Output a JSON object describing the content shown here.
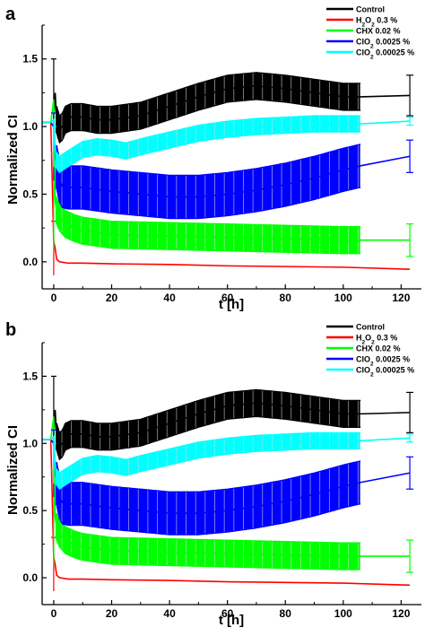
{
  "chart_data": [
    {
      "type": "line",
      "panel_letter": "a",
      "xlabel": "t [h]",
      "ylabel": "Normalized CI",
      "xlim": [
        -4,
        127
      ],
      "ylim": [
        -0.2,
        1.75
      ],
      "x_ticks": [
        "0",
        "20",
        "40",
        "60",
        "80",
        "100",
        "120"
      ],
      "x_tick_values": [
        0,
        20,
        40,
        60,
        80,
        100,
        120
      ],
      "y_ticks": [
        "0.0",
        "0.5",
        "1.0",
        "1.5"
      ],
      "y_tick_values": [
        0.0,
        0.5,
        1.0,
        1.5
      ],
      "legend_position": "top-right",
      "grid": false,
      "series": [
        {
          "name": "Control",
          "color": "#000000",
          "x": [
            -4,
            -1,
            0,
            0.5,
            1,
            2,
            3,
            4,
            6,
            10,
            15,
            20,
            30,
            40,
            50,
            60,
            70,
            80,
            90,
            100,
            106,
            123
          ],
          "y": [
            1.03,
            1.03,
            1.05,
            1.25,
            1.05,
            0.98,
            1.0,
            1.05,
            1.07,
            1.07,
            1.05,
            1.05,
            1.08,
            1.15,
            1.22,
            1.28,
            1.3,
            1.28,
            1.25,
            1.22,
            1.22,
            1.23
          ],
          "err": 0.1,
          "end_point_err": 0.15
        },
        {
          "name": "H2O2 0.3 %",
          "color": "#ff0000",
          "x": [
            -4,
            -1,
            0,
            0.5,
            1,
            2,
            5,
            10,
            20,
            40,
            60,
            80,
            100,
            123
          ],
          "y": [
            1.03,
            1.03,
            0.15,
            0.1,
            0.02,
            0.0,
            -0.01,
            -0.01,
            -0.015,
            -0.02,
            -0.03,
            -0.035,
            -0.04,
            -0.055
          ],
          "err": 0.005,
          "end_point_err": 0.0
        },
        {
          "name": "CHX 0.02 %",
          "color": "#00ff00",
          "x": [
            -4,
            -1,
            0,
            0.5,
            1,
            2,
            4,
            7,
            10,
            20,
            40,
            60,
            80,
            100,
            106,
            123
          ],
          "y": [
            1.03,
            1.03,
            1.2,
            0.45,
            0.38,
            0.33,
            0.28,
            0.25,
            0.23,
            0.2,
            0.19,
            0.18,
            0.17,
            0.16,
            0.16,
            0.16
          ],
          "err": 0.1,
          "end_point_err": 0.12
        },
        {
          "name": "ClO2 0.0025 %",
          "color": "#0000ff",
          "x": [
            -4,
            -1,
            0,
            0.5,
            1,
            2,
            3,
            5,
            10,
            20,
            30,
            40,
            50,
            60,
            70,
            80,
            90,
            100,
            106,
            123
          ],
          "y": [
            1.03,
            1.03,
            1.0,
            0.85,
            0.7,
            0.6,
            0.56,
            0.55,
            0.55,
            0.52,
            0.5,
            0.48,
            0.48,
            0.5,
            0.53,
            0.57,
            0.62,
            0.68,
            0.71,
            0.78
          ],
          "err": 0.16,
          "end_point_err": 0.12
        },
        {
          "name": "ClO2 0.00025 %",
          "color": "#00ffff",
          "x": [
            -4,
            -1,
            0,
            0.5,
            1,
            2,
            4,
            10,
            15,
            20,
            25,
            30,
            40,
            50,
            60,
            70,
            80,
            90,
            100,
            106,
            123
          ],
          "y": [
            1.03,
            1.03,
            1.05,
            0.85,
            0.75,
            0.72,
            0.75,
            0.83,
            0.85,
            0.84,
            0.82,
            0.85,
            0.9,
            0.95,
            0.98,
            1.0,
            1.01,
            1.02,
            1.02,
            1.02,
            1.04
          ],
          "err": 0.06,
          "end_point_err": 0.03
        }
      ],
      "legend": [
        {
          "label": "Control",
          "color": "#000000"
        },
        {
          "main": "H",
          "sub1": "2",
          "mid": "O",
          "sub2": "2",
          "rest": " 0.3  %",
          "color": "#ff0000"
        },
        {
          "label": "CHX 0.02 %",
          "color": "#00ff00"
        },
        {
          "main": "ClO",
          "sub1": "2",
          "rest": " 0.0025 %",
          "color": "#0000ff"
        },
        {
          "main": "ClO",
          "sub1": "2",
          "rest": " 0.00025 %",
          "color": "#00ffff"
        }
      ]
    },
    {
      "type": "line",
      "panel_letter": "b",
      "xlabel": "t [h]",
      "ylabel": "Normalized CI",
      "xlim": [
        -4,
        127
      ],
      "ylim": [
        -0.2,
        1.75
      ],
      "x_ticks": [
        "0",
        "20",
        "40",
        "60",
        "80",
        "100",
        "120"
      ],
      "x_tick_values": [
        0,
        20,
        40,
        60,
        80,
        100,
        120
      ],
      "y_ticks": [
        "0.0",
        "0.5",
        "1.0",
        "1.5"
      ],
      "y_tick_values": [
        0.0,
        0.5,
        1.0,
        1.5
      ],
      "legend_position": "top-right",
      "grid": false,
      "series": [
        {
          "name": "Control",
          "color": "#000000",
          "x": [
            -4,
            -1,
            0,
            0.5,
            1,
            2,
            3,
            4,
            6,
            10,
            15,
            20,
            30,
            40,
            50,
            60,
            70,
            80,
            90,
            100,
            106,
            123
          ],
          "y": [
            1.03,
            1.03,
            1.05,
            1.25,
            1.05,
            0.98,
            1.0,
            1.05,
            1.07,
            1.07,
            1.05,
            1.05,
            1.08,
            1.15,
            1.22,
            1.28,
            1.3,
            1.28,
            1.25,
            1.22,
            1.22,
            1.23
          ],
          "err": 0.1,
          "end_point_err": 0.15
        },
        {
          "name": "H2O2 0.3 %",
          "color": "#ff0000",
          "x": [
            -4,
            -1,
            0,
            0.5,
            1,
            2,
            5,
            10,
            20,
            40,
            60,
            80,
            100,
            123
          ],
          "y": [
            1.03,
            1.03,
            0.15,
            0.1,
            0.02,
            0.0,
            -0.01,
            -0.01,
            -0.015,
            -0.02,
            -0.03,
            -0.035,
            -0.04,
            -0.055
          ],
          "err": 0.005,
          "end_point_err": 0.0
        },
        {
          "name": "CHX 0.02 %",
          "color": "#00ff00",
          "x": [
            -4,
            -1,
            0,
            0.5,
            1,
            2,
            4,
            7,
            10,
            20,
            40,
            60,
            80,
            100,
            106,
            123
          ],
          "y": [
            1.03,
            1.03,
            1.2,
            0.45,
            0.38,
            0.33,
            0.28,
            0.25,
            0.23,
            0.2,
            0.19,
            0.18,
            0.17,
            0.16,
            0.16,
            0.16
          ],
          "err": 0.1,
          "end_point_err": 0.12
        },
        {
          "name": "ClO2 0.0025 %",
          "color": "#0000ff",
          "x": [
            -4,
            -1,
            0,
            0.5,
            1,
            2,
            3,
            5,
            10,
            20,
            30,
            40,
            50,
            60,
            70,
            80,
            90,
            100,
            106,
            123
          ],
          "y": [
            1.03,
            1.03,
            1.0,
            0.85,
            0.7,
            0.6,
            0.56,
            0.55,
            0.55,
            0.52,
            0.5,
            0.48,
            0.48,
            0.5,
            0.53,
            0.57,
            0.62,
            0.68,
            0.71,
            0.78
          ],
          "err": 0.16,
          "end_point_err": 0.12
        },
        {
          "name": "ClO2 0.00025 %",
          "color": "#00ffff",
          "x": [
            -4,
            -1,
            0,
            0.5,
            1,
            2,
            4,
            10,
            15,
            20,
            25,
            30,
            40,
            50,
            60,
            70,
            80,
            90,
            100,
            106,
            123
          ],
          "y": [
            1.03,
            1.03,
            1.05,
            0.85,
            0.75,
            0.72,
            0.75,
            0.83,
            0.85,
            0.84,
            0.82,
            0.85,
            0.9,
            0.95,
            0.98,
            1.0,
            1.01,
            1.02,
            1.02,
            1.02,
            1.04
          ],
          "err": 0.06,
          "end_point_err": 0.03
        }
      ],
      "legend": [
        {
          "label": "Control",
          "color": "#000000"
        },
        {
          "main": "H",
          "sub1": "2",
          "mid": "O",
          "sub2": "2",
          "rest": " 0.3 %",
          "color": "#ff0000"
        },
        {
          "label": "CHX 0.02 %",
          "color": "#00ff00"
        },
        {
          "main": "ClO",
          "sub1": "2",
          "rest": " 0.0025 %",
          "color": "#0000ff"
        },
        {
          "main": "ClO",
          "sub1": "2",
          "rest": " 0.00025 %",
          "color": "#00ffff"
        }
      ]
    }
  ]
}
